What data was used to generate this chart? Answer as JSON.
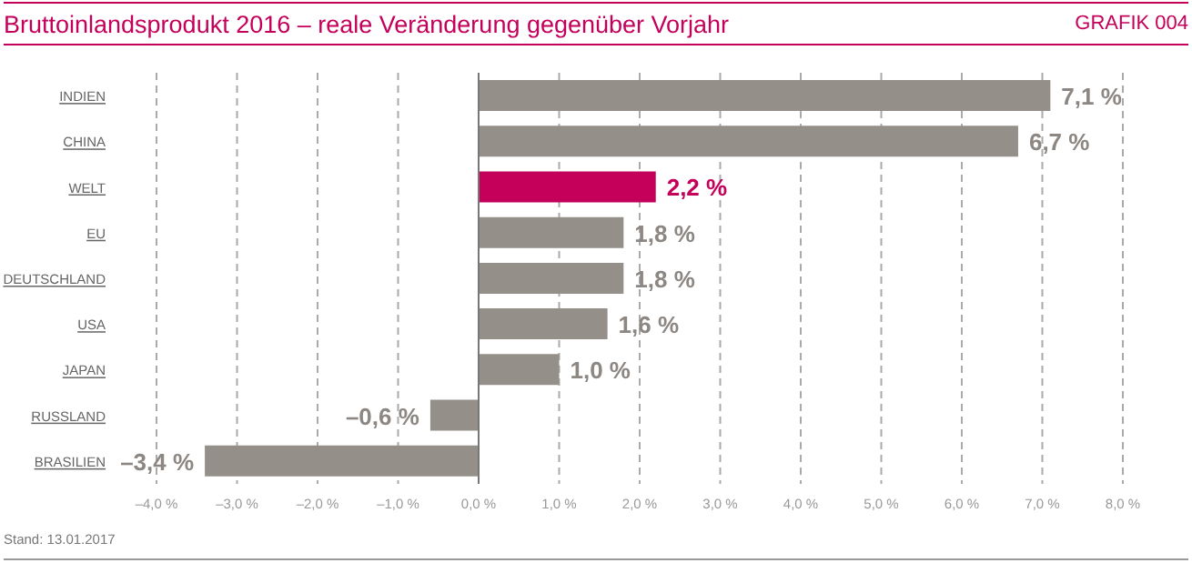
{
  "chart_data": {
    "type": "bar",
    "orientation": "horizontal",
    "title": "Bruttoinlandsprodukt 2016 – reale Veränderung gegenüber Vorjahr",
    "annotations": [
      "GRAFIK 004",
      "Stand: 13.01.2017"
    ],
    "categories": [
      "INDIEN",
      "CHINA",
      "WELT",
      "EU",
      "DEUTSCHLAND",
      "USA",
      "JAPAN",
      "RUSSLAND",
      "BRASILIEN"
    ],
    "values": [
      7.1,
      6.7,
      2.2,
      1.8,
      1.8,
      1.6,
      1.0,
      -0.6,
      -3.4
    ],
    "value_labels": [
      "7,1 %",
      "6,7 %",
      "2,2 %",
      "1,8 %",
      "1,8 %",
      "1,6 %",
      "1,0 %",
      "–0,6 %",
      "–3,4 %"
    ],
    "colors": [
      "#948f89",
      "#948f89",
      "#c4005a",
      "#948f89",
      "#948f89",
      "#948f89",
      "#948f89",
      "#948f89",
      "#948f89"
    ],
    "xlim": [
      -4,
      8
    ],
    "xticks": [
      {
        "value": -4,
        "label": "–4,0 %"
      },
      {
        "value": -3,
        "label": "–3,0 %"
      },
      {
        "value": -2,
        "label": "–2,0 %"
      },
      {
        "value": -1,
        "label": "–1,0 %"
      },
      {
        "value": 0,
        "label": "0,0 %"
      },
      {
        "value": 1,
        "label": "1,0 %"
      },
      {
        "value": 2,
        "label": "2,0 %"
      },
      {
        "value": 3,
        "label": "3,0 %"
      },
      {
        "value": 4,
        "label": "4,0 %"
      },
      {
        "value": 5,
        "label": "5,0 %"
      },
      {
        "value": 6,
        "label": "6,0 %"
      },
      {
        "value": 7,
        "label": "7,0 %"
      },
      {
        "value": 8,
        "label": "8,0 %"
      }
    ],
    "grid": "x",
    "legend": false
  }
}
